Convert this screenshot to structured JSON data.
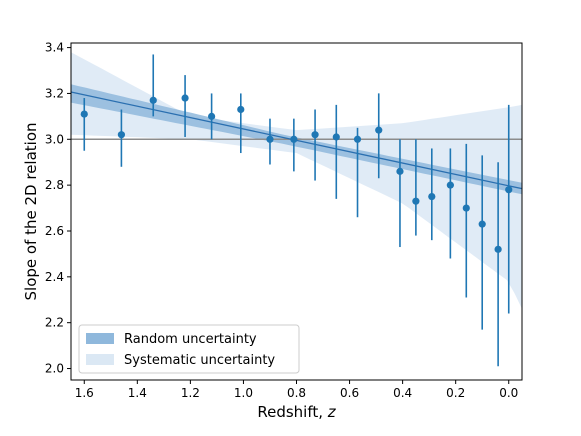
{
  "chart_data": {
    "type": "scatter",
    "xlabel": "Redshift, ",
    "xlabel_var": "z",
    "ylabel": "Slope of the 2D relation",
    "xlim": [
      1.65,
      -0.05
    ],
    "ylim": [
      1.95,
      3.42
    ],
    "x_ticks": [
      1.6,
      1.4,
      1.2,
      1.0,
      0.8,
      0.6,
      0.4,
      0.2,
      0.0
    ],
    "x_tick_labels": [
      "1.6",
      "1.4",
      "1.2",
      "1.0",
      "0.8",
      "0.6",
      "0.4",
      "0.2",
      "0.0"
    ],
    "y_ticks": [
      2.0,
      2.2,
      2.4,
      2.6,
      2.8,
      3.0,
      3.2,
      3.4
    ],
    "y_tick_labels": [
      "2.0",
      "2.2",
      "2.4",
      "2.6",
      "2.8",
      "3.0",
      "3.2",
      "3.4"
    ],
    "reference_line": 3.0,
    "colors": {
      "points": "#1f77b4",
      "fit_line": "#2a6fb0",
      "random_band": "#8fb8dc",
      "systematic_band": "#dbe8f4",
      "reference_line": "#8c8c8c"
    },
    "fit": {
      "slope": 0.248,
      "intercept": 2.797
    },
    "random_band": {
      "x": [
        1.65,
        0.85,
        -0.05
      ],
      "lower": [
        3.16,
        2.98,
        2.76
      ],
      "upper": [
        3.24,
        3.02,
        2.81
      ]
    },
    "systematic_band": {
      "x": [
        1.65,
        1.2,
        0.8,
        0.4,
        0.0,
        -0.05
      ],
      "lower": [
        3.02,
        3.0,
        2.94,
        2.72,
        2.38,
        2.26
      ],
      "upper": [
        3.38,
        3.1,
        3.04,
        3.07,
        3.14,
        3.15
      ]
    },
    "points": [
      {
        "x": 1.6,
        "y": 3.11,
        "lo": 2.95,
        "hi": 3.18
      },
      {
        "x": 1.46,
        "y": 3.02,
        "lo": 2.88,
        "hi": 3.13
      },
      {
        "x": 1.34,
        "y": 3.17,
        "lo": 3.1,
        "hi": 3.37
      },
      {
        "x": 1.22,
        "y": 3.18,
        "lo": 3.01,
        "hi": 3.28
      },
      {
        "x": 1.12,
        "y": 3.1,
        "lo": 3.0,
        "hi": 3.2
      },
      {
        "x": 1.01,
        "y": 3.13,
        "lo": 2.94,
        "hi": 3.2
      },
      {
        "x": 0.9,
        "y": 3.0,
        "lo": 2.89,
        "hi": 3.09
      },
      {
        "x": 0.81,
        "y": 3.0,
        "lo": 2.86,
        "hi": 3.09
      },
      {
        "x": 0.73,
        "y": 3.02,
        "lo": 2.82,
        "hi": 3.13
      },
      {
        "x": 0.65,
        "y": 3.01,
        "lo": 2.74,
        "hi": 3.15
      },
      {
        "x": 0.57,
        "y": 3.0,
        "lo": 2.66,
        "hi": 3.05
      },
      {
        "x": 0.49,
        "y": 3.04,
        "lo": 2.83,
        "hi": 3.2
      },
      {
        "x": 0.41,
        "y": 2.86,
        "lo": 2.53,
        "hi": 3.0
      },
      {
        "x": 0.35,
        "y": 2.73,
        "lo": 2.58,
        "hi": 3.0
      },
      {
        "x": 0.29,
        "y": 2.75,
        "lo": 2.56,
        "hi": 2.96
      },
      {
        "x": 0.22,
        "y": 2.8,
        "lo": 2.48,
        "hi": 2.96
      },
      {
        "x": 0.16,
        "y": 2.7,
        "lo": 2.31,
        "hi": 2.98
      },
      {
        "x": 0.1,
        "y": 2.63,
        "lo": 2.17,
        "hi": 2.93
      },
      {
        "x": 0.04,
        "y": 2.52,
        "lo": 2.01,
        "hi": 2.9
      },
      {
        "x": 0.0,
        "y": 2.78,
        "lo": 2.24,
        "hi": 3.15
      }
    ],
    "legend": {
      "position": "lower-left",
      "entries": [
        "Random uncertainty",
        "Systematic uncertainty"
      ]
    }
  }
}
